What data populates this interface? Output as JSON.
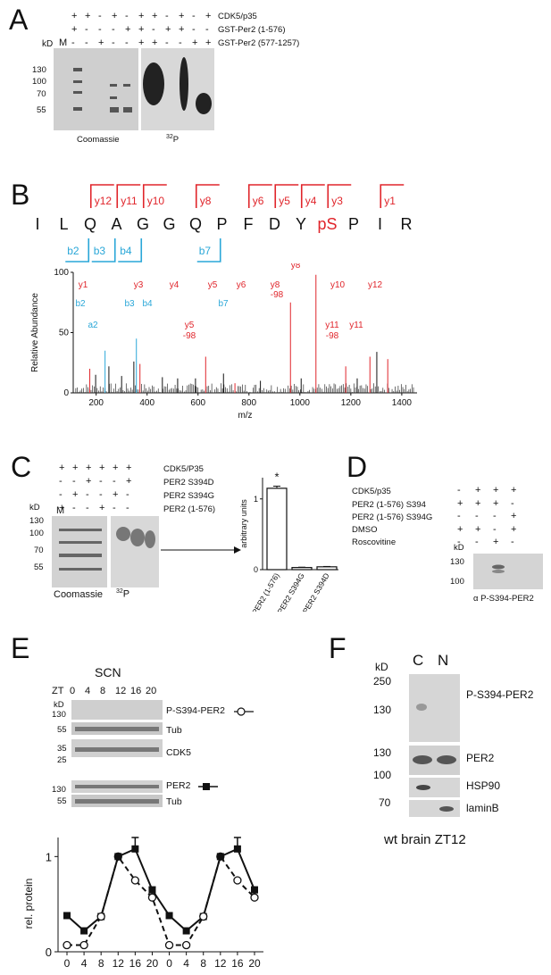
{
  "colors": {
    "red": "#e0252b",
    "cyan": "#2aa7d8",
    "black": "#111111"
  },
  "panelA": {
    "letter": "A",
    "row_labels": [
      "CDK5/p35",
      "GST-Per2 (1-576)",
      "GST-Per2 (577-1257)"
    ],
    "signs": [
      [
        "+",
        "+",
        "-",
        "+",
        "-",
        "+",
        "+",
        "-",
        "+",
        "-",
        "+"
      ],
      [
        "+",
        "-",
        "-",
        "-",
        "+",
        "+",
        "-",
        "+",
        "+",
        "-",
        "-"
      ],
      [
        "-",
        "-",
        "+",
        "-",
        "-",
        "+",
        "+",
        "-",
        "-",
        "+",
        "+"
      ]
    ],
    "kd": "kD",
    "m": "M",
    "markers": [
      "130",
      "100",
      "70",
      "55"
    ],
    "coomassie": "Coomassie",
    "p32_sup": "32",
    "p32_letter": "P"
  },
  "panelB": {
    "letter": "B",
    "sequence": [
      "I",
      "L",
      "Q",
      "A",
      "G",
      "G",
      "Q",
      "P",
      "F",
      "D",
      "Y",
      "pS",
      "P",
      "I",
      "R"
    ],
    "y_ions": [
      "y12",
      "y11",
      "y10",
      "y8",
      "y6",
      "y5",
      "y4",
      "y3",
      "y1"
    ],
    "b_ions": [
      "b2",
      "b3",
      "b4",
      "b7"
    ],
    "ylabel": "Relative Abundance",
    "xlabel": "m/z",
    "y_ticks": [
      "100",
      "50",
      "0"
    ],
    "x_ticks": [
      "200",
      "400",
      "600",
      "800",
      "1000",
      "1200",
      "1400"
    ],
    "peak_labels": {
      "y1": "y1",
      "y3": "y3",
      "y4": "y4",
      "y5": "y5",
      "y6": "y6",
      "y8": "y8",
      "y8_98a": "y8",
      "y8_98b": "-98",
      "y10": "y10",
      "y12": "y12",
      "b2": "b2",
      "b3": "b3",
      "b4": "b4",
      "b7": "b7",
      "a2": "a2",
      "y5_98a": "y5",
      "y5_98b": "-98",
      "y11_98a": "y11",
      "y11_98b": "-98",
      "y11": "y11"
    }
  },
  "panelC": {
    "letter": "C",
    "row_labels": [
      "CDK5/P35",
      "PER2 S394D",
      "PER2 S394G",
      "PER2 (1-576)"
    ],
    "signs": [
      [
        "+",
        "+",
        "+",
        "+",
        "+",
        "+"
      ],
      [
        "-",
        "-",
        "+",
        "-",
        "-",
        "+"
      ],
      [
        "-",
        "+",
        "-",
        "-",
        "+",
        "-"
      ],
      [
        "+",
        "-",
        "-",
        "+",
        "-",
        "-"
      ]
    ],
    "kd": "kD",
    "m": "M",
    "markers": [
      "130",
      "100",
      "70",
      "55"
    ],
    "coomassie": "Coomassie",
    "p32_sup": "32",
    "p32_letter": "P",
    "star": "*"
  },
  "panelD": {
    "letter": "D",
    "row_labels": [
      "CDK5/p35",
      "PER2 (1-576) S394",
      "PER2 (1-576) S394G",
      "DMSO",
      "Roscovitine"
    ],
    "signs": [
      [
        "-",
        "+",
        "+",
        "+"
      ],
      [
        "+",
        "+",
        "+",
        "-"
      ],
      [
        "-",
        "-",
        "-",
        "+"
      ],
      [
        "+",
        "+",
        "-",
        "+"
      ],
      [
        "-",
        "-",
        "+",
        "-"
      ]
    ],
    "kd": "kD",
    "markers": [
      "130",
      "100"
    ],
    "antibody": "α P-S394-PER2"
  },
  "panelE": {
    "letter": "E",
    "title": "SCN",
    "zt_label": "ZT",
    "zt_values": [
      "0",
      "4",
      "8",
      "12",
      "16",
      "20"
    ],
    "kd": "kD",
    "blot_labels": [
      "P-S394-PER2",
      "Tub",
      "CDK5",
      "PER2",
      "Tub"
    ],
    "markers": {
      "b1": "130",
      "b2": "55",
      "b3a": "35",
      "b3b": "25",
      "b4": "130",
      "b5": "55"
    },
    "ylabel": "rel. protein",
    "xlabel": "ZT",
    "y_ticks": [
      "0",
      "1"
    ],
    "x_ticks": [
      "0",
      "4",
      "8",
      "12",
      "16",
      "20",
      "0",
      "4",
      "8",
      "12",
      "16",
      "20"
    ]
  },
  "panelF": {
    "letter": "F",
    "kd": "kD",
    "lanes": [
      "C",
      "N"
    ],
    "blot_labels": [
      "P-S394-PER2",
      "PER2",
      "HSP90",
      "laminB"
    ],
    "markers": [
      "250",
      "130",
      "130",
      "100",
      "70"
    ],
    "caption": "wt brain ZT12"
  },
  "chart_data": [
    {
      "type": "bar",
      "categories": [
        "PER2 (1-576)",
        "PER2 S394G",
        "PER2 S394D"
      ],
      "values": [
        1.15,
        0.03,
        0.04
      ],
      "errors": [
        0.03,
        0.005,
        0.005
      ],
      "ylabel": "arbitrary units",
      "ylim": [
        0,
        1.3
      ],
      "y_ticks": [
        0,
        1
      ],
      "annotation": "*"
    },
    {
      "type": "line",
      "x": [
        0,
        4,
        8,
        12,
        16,
        20,
        24,
        28,
        32,
        36,
        40,
        44
      ],
      "x_tick_labels": [
        "0",
        "4",
        "8",
        "12",
        "16",
        "20",
        "0",
        "4",
        "8",
        "12",
        "16",
        "20"
      ],
      "series": [
        {
          "name": "PER2",
          "values": [
            0.38,
            0.22,
            0.37,
            1.0,
            1.08,
            0.65,
            0.38,
            0.22,
            0.37,
            1.0,
            1.08,
            0.65
          ],
          "errors": [
            0,
            0,
            0,
            0,
            0.12,
            0.03,
            0,
            0,
            0,
            0,
            0.12,
            0.03
          ]
        },
        {
          "name": "P-S394-PER2",
          "values": [
            0.07,
            0.07,
            0.37,
            1.0,
            0.75,
            0.57,
            0.07,
            0.07,
            0.37,
            1.0,
            0.75,
            0.57
          ]
        }
      ],
      "ylabel": "rel. protein",
      "xlabel": "ZT",
      "ylim": [
        0,
        1.2
      ],
      "y_ticks": [
        0,
        1
      ]
    }
  ]
}
